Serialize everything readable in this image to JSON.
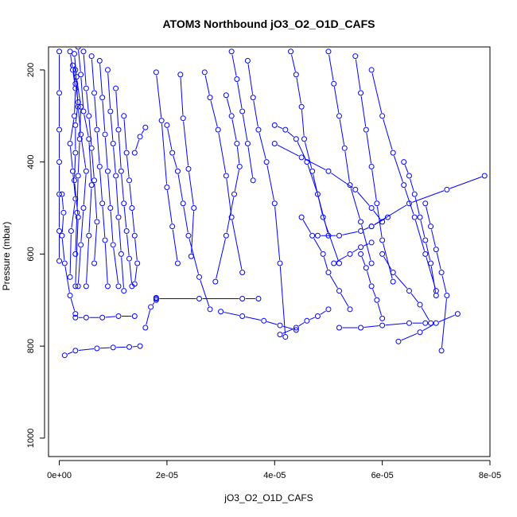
{
  "chart_data": {
    "type": "line",
    "title": "ATOM3 Northbound jO3_O2_O1D_CAFS",
    "xlabel": "jO3_O2_O1D_CAFS",
    "ylabel": "Pressure (mbar)",
    "xlim": [
      -2e-06,
      8e-05
    ],
    "ylim": [
      1040,
      150
    ],
    "y_inverted": true,
    "x_ticks": [
      0,
      2e-05,
      4e-05,
      6e-05,
      8e-05
    ],
    "x_tick_labels": [
      "0e+00",
      "2e-05",
      "4e-05",
      "6e-05",
      "8e-05"
    ],
    "y_ticks": [
      200,
      400,
      600,
      800,
      1000
    ],
    "y_tick_labels": [
      "200",
      "400",
      "600",
      "800",
      "1000"
    ],
    "grid": false,
    "series_color": "#0000ff",
    "series": [
      {
        "x": [
          0.0,
          0.0,
          0.0,
          0.0,
          0.0,
          0.0,
          0.0
        ],
        "y": [
          160,
          250,
          330,
          400,
          470,
          550,
          615
        ]
      },
      {
        "x": [
          5e-07,
          8e-07,
          5e-07,
          1e-06,
          2e-06,
          3e-06
        ],
        "y": [
          470,
          510,
          560,
          620,
          690,
          730
        ]
      },
      {
        "x": [
          2e-06,
          2.5e-06,
          3e-06,
          2.8e-06,
          2e-06,
          2.5e-06,
          3e-06,
          2.2e-06,
          2e-06
        ],
        "y": [
          160,
          200,
          240,
          300,
          360,
          420,
          480,
          550,
          650
        ]
      },
      {
        "x": [
          2.5e-06,
          3e-06,
          3.5e-06,
          3e-06,
          3e-06,
          2.8e-06,
          3.5e-06,
          3e-06
        ],
        "y": [
          190,
          230,
          270,
          320,
          380,
          440,
          520,
          670
        ]
      },
      {
        "x": [
          2.8e-06,
          3.2e-06,
          4e-06,
          3.8e-06,
          3.5e-06,
          3.3e-06,
          3e-06
        ],
        "y": [
          165,
          215,
          280,
          350,
          430,
          510,
          600
        ]
      },
      {
        "x": [
          3e-06,
          3.5e-06,
          4e-06,
          5e-06,
          4.5e-06,
          4e-06,
          3.5e-06
        ],
        "y": [
          200,
          280,
          340,
          420,
          500,
          580,
          670
        ]
      },
      {
        "x": [
          3.5e-06,
          4e-06,
          4.5e-06,
          5.5e-06,
          6e-06,
          5.5e-06,
          5e-06
        ],
        "y": [
          150,
          210,
          290,
          350,
          450,
          560,
          670
        ]
      },
      {
        "x": [
          4.5e-06,
          5e-06,
          5.5e-06,
          6e-06,
          6.5e-06,
          7e-06,
          6.5e-06
        ],
        "y": [
          160,
          240,
          300,
          370,
          440,
          530,
          620
        ]
      },
      {
        "x": [
          6e-06,
          6.5e-06,
          7e-06,
          7.5e-06,
          8e-06,
          8.5e-06,
          9e-06
        ],
        "y": [
          170,
          250,
          330,
          410,
          490,
          570,
          670
        ]
      },
      {
        "x": [
          7.5e-06,
          8e-06,
          8.5e-06,
          9e-06,
          9.5e-06,
          1e-05,
          1.1e-05
        ],
        "y": [
          180,
          260,
          340,
          420,
          500,
          580,
          670
        ]
      },
      {
        "x": [
          9e-06,
          9.5e-06,
          1e-05,
          1.05e-05,
          1.1e-05,
          1.15e-05,
          1.2e-05
        ],
        "y": [
          200,
          290,
          360,
          430,
          520,
          600,
          680
        ]
      },
      {
        "x": [
          1.05e-05,
          1.1e-05,
          1.15e-05,
          1.2e-05,
          1.25e-05,
          1.3e-05,
          1.35e-05
        ],
        "y": [
          240,
          330,
          420,
          490,
          550,
          610,
          670
        ]
      },
      {
        "x": [
          1.2e-05,
          1.25e-05,
          1.3e-05,
          1.35e-05,
          1.4e-05,
          1.45e-05,
          1.4e-05
        ],
        "y": [
          300,
          380,
          440,
          500,
          560,
          620,
          665
        ]
      },
      {
        "x": [
          1e-06,
          3e-06,
          7e-06,
          1e-05,
          1.3e-05,
          1.5e-05
        ],
        "y": [
          820,
          810,
          805,
          803,
          802,
          800
        ]
      },
      {
        "x": [
          3e-06,
          5e-06,
          8e-06,
          1.1e-05,
          1.4e-05
        ],
        "y": [
          738,
          738,
          738,
          735,
          735
        ]
      },
      {
        "x": [
          1.6e-05,
          1.7e-05,
          1.8e-05,
          1.8e-05
        ],
        "y": [
          760,
          715,
          700,
          695
        ]
      },
      {
        "x": [
          1.8e-05,
          1.9e-05,
          2e-05,
          2.1e-05,
          2.2e-05
        ],
        "y": [
          205,
          310,
          455,
          540,
          620
        ]
      },
      {
        "x": [
          2.25e-05,
          2.3e-05,
          2.4e-05,
          2.5e-05,
          2.45e-05
        ],
        "y": [
          210,
          305,
          415,
          500,
          605
        ]
      },
      {
        "x": [
          2e-05,
          2.1e-05,
          2.2e-05,
          2.3e-05,
          2.4e-05,
          2.6e-05,
          2.8e-05
        ],
        "y": [
          320,
          380,
          420,
          490,
          560,
          650,
          720
        ]
      },
      {
        "x": [
          1.4e-05,
          1.5e-05,
          1.6e-05
        ],
        "y": [
          380,
          345,
          325
        ]
      },
      {
        "x": [
          1.8e-05,
          2.6e-05,
          3.4e-05,
          3.7e-05
        ],
        "y": [
          697,
          697,
          697,
          697
        ]
      },
      {
        "x": [
          2.7e-05,
          2.8e-05,
          2.95e-05,
          3.1e-05,
          3.2e-05,
          3.4e-05
        ],
        "y": [
          205,
          260,
          330,
          430,
          520,
          640
        ]
      },
      {
        "x": [
          3.1e-05,
          3.2e-05,
          3.3e-05,
          3.35e-05,
          3.25e-05,
          3.1e-05,
          2.9e-05
        ],
        "y": [
          255,
          300,
          360,
          410,
          470,
          560,
          660
        ]
      },
      {
        "x": [
          3.5e-05,
          3.6e-05,
          3.7e-05,
          3.85e-05,
          4e-05,
          4.1e-05,
          4.2e-05
        ],
        "y": [
          180,
          260,
          330,
          400,
          490,
          620,
          780
        ]
      },
      {
        "x": [
          4e-05,
          4.2e-05,
          4.4e-05,
          4.6e-05,
          4.8e-05,
          5e-05
        ],
        "y": [
          320,
          330,
          350,
          400,
          470,
          560
        ]
      },
      {
        "x": [
          4.3e-05,
          4.4e-05,
          4.5e-05,
          4.55e-05,
          4.7e-05,
          4.9e-05,
          5.2e-05
        ],
        "y": [
          160,
          210,
          280,
          350,
          420,
          520,
          620
        ]
      },
      {
        "x": [
          5e-05,
          5.1e-05,
          5.2e-05,
          5.3e-05,
          5.4e-05,
          5.6e-05,
          5.8e-05
        ],
        "y": [
          160,
          230,
          300,
          370,
          450,
          530,
          620
        ]
      },
      {
        "x": [
          5.5e-05,
          5.6e-05,
          5.7e-05,
          5.8e-05,
          5.9e-05,
          6e-05,
          6.2e-05
        ],
        "y": [
          170,
          250,
          330,
          410,
          490,
          570,
          660
        ]
      },
      {
        "x": [
          5.8e-05,
          6e-05,
          6.2e-05,
          6.4e-05,
          6.6e-05,
          6.8e-05,
          7e-05
        ],
        "y": [
          200,
          300,
          380,
          450,
          520,
          600,
          680
        ]
      },
      {
        "x": [
          6.4e-05,
          6.5e-05,
          6.6e-05,
          6.7e-05,
          6.8e-05,
          6.9e-05,
          7e-05
        ],
        "y": [
          400,
          430,
          470,
          520,
          570,
          620,
          690
        ]
      },
      {
        "x": [
          6.8e-05,
          6.9e-05,
          7e-05,
          7.1e-05,
          7.2e-05,
          7.1e-05
        ],
        "y": [
          490,
          540,
          590,
          640,
          690,
          810
        ]
      },
      {
        "x": [
          6.3e-05,
          6.7e-05,
          7e-05,
          7.4e-05
        ],
        "y": [
          790,
          770,
          750,
          730
        ]
      },
      {
        "x": [
          5.2e-05,
          5.6e-05,
          6e-05,
          6.5e-05,
          6.8e-05
        ],
        "y": [
          760,
          760,
          755,
          750,
          750
        ]
      },
      {
        "x": [
          4.1e-05,
          4.4e-05,
          4.6e-05,
          4.8e-05,
          5e-05
        ],
        "y": [
          775,
          760,
          745,
          735,
          720
        ]
      },
      {
        "x": [
          4e-05,
          4.5e-05,
          5e-05,
          5.5e-05,
          5.8e-05,
          6e-05
        ],
        "y": [
          360,
          390,
          420,
          460,
          500,
          530
        ]
      },
      {
        "x": [
          5.8e-05,
          6.5e-05,
          7.2e-05,
          7.9e-05
        ],
        "y": [
          540,
          490,
          460,
          430
        ]
      },
      {
        "x": [
          4.8e-05,
          5.2e-05,
          5.6e-05,
          5.8e-05,
          6.1e-05
        ],
        "y": [
          560,
          560,
          550,
          540,
          520
        ]
      },
      {
        "x": [
          5.1e-05,
          5.4e-05,
          5.6e-05,
          5.8e-05
        ],
        "y": [
          620,
          600,
          585,
          575
        ]
      },
      {
        "x": [
          3e-05,
          3.4e-05,
          3.8e-05,
          4.1e-05,
          4.4e-05
        ],
        "y": [
          725,
          735,
          745,
          755,
          765
        ]
      },
      {
        "x": [
          3.2e-05,
          3.3e-05,
          3.4e-05,
          3.5e-05,
          3.6e-05
        ],
        "y": [
          160,
          220,
          290,
          360,
          440
        ]
      },
      {
        "x": [
          4.5e-05,
          4.7e-05,
          4.9e-05,
          5e-05,
          5.2e-05,
          5.4e-05
        ],
        "y": [
          520,
          560,
          600,
          640,
          680,
          720
        ]
      },
      {
        "x": [
          5.6e-05,
          5.7e-05,
          5.8e-05,
          5.9e-05,
          6e-05
        ],
        "y": [
          600,
          630,
          670,
          700,
          740
        ]
      },
      {
        "x": [
          6e-05,
          6.2e-05,
          6.5e-05,
          6.7e-05,
          6.9e-05
        ],
        "y": [
          600,
          640,
          680,
          710,
          750
        ]
      }
    ]
  }
}
